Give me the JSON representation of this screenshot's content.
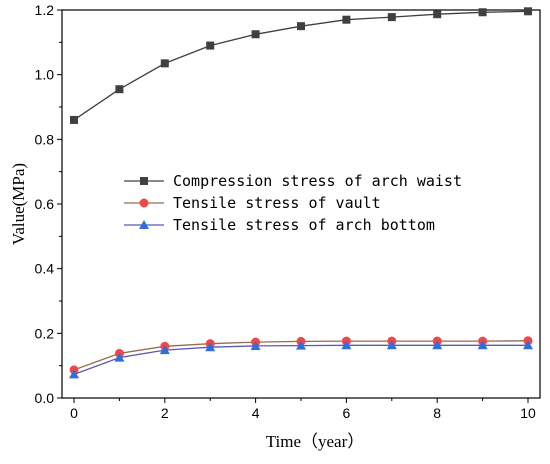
{
  "chart_data": {
    "type": "line",
    "title": "",
    "xlabel": "Time（year）",
    "ylabel": "Value(MPa)",
    "xlim": [
      0,
      10
    ],
    "ylim": [
      0,
      1.2
    ],
    "xticks": [
      "0",
      "2",
      "4",
      "6",
      "8",
      "10"
    ],
    "yticks": [
      "0.0",
      "0.2",
      "0.4",
      "0.6",
      "0.8",
      "1.0",
      "1.2"
    ],
    "grid": false,
    "legend_position": "center-left",
    "x": [
      0,
      1,
      2,
      3,
      4,
      5,
      6,
      7,
      8,
      9,
      10
    ],
    "series": [
      {
        "name": "Compression stress of arch waist",
        "marker": "square",
        "color": "#404040",
        "marker_color": "#404040",
        "values": [
          0.86,
          0.955,
          1.035,
          1.09,
          1.125,
          1.15,
          1.17,
          1.178,
          1.187,
          1.193,
          1.196
        ]
      },
      {
        "name": "Tensile stress of vault",
        "marker": "circle",
        "color": "#9b6a4a",
        "marker_color": "#f04848",
        "values": [
          0.087,
          0.138,
          0.16,
          0.168,
          0.173,
          0.175,
          0.176,
          0.176,
          0.176,
          0.176,
          0.177
        ]
      },
      {
        "name": "Tensile stress of arch bottom",
        "marker": "triangle",
        "color": "#5a5ab4",
        "marker_color": "#2f6de0",
        "values": [
          0.073,
          0.125,
          0.148,
          0.157,
          0.161,
          0.162,
          0.163,
          0.163,
          0.163,
          0.163,
          0.163
        ]
      }
    ]
  }
}
